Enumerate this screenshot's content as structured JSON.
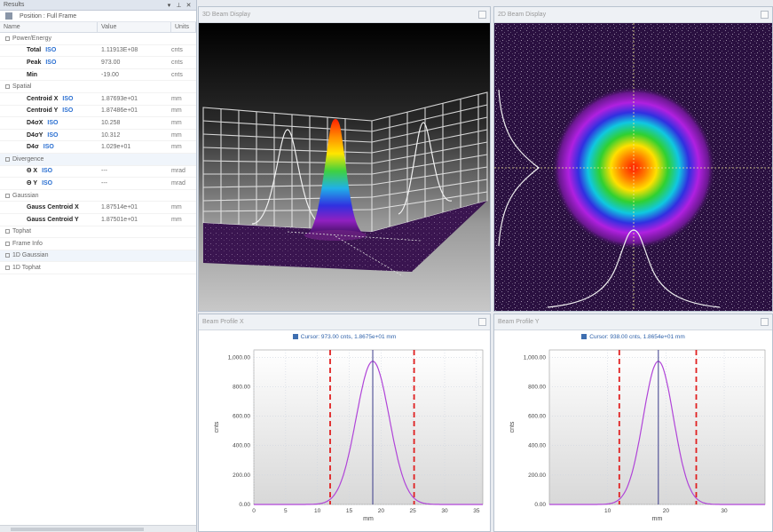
{
  "results": {
    "title": "Results",
    "toolbar_label": "Position : Full Frame",
    "columns": [
      "Name",
      "Value",
      "Units"
    ],
    "rows": [
      {
        "type": "group",
        "name": "Power/Energy"
      },
      {
        "type": "item",
        "name": "Total",
        "iso": "ISO",
        "value": "1.11913E+08",
        "units": "cnts"
      },
      {
        "type": "item",
        "name": "Peak",
        "iso": "ISO",
        "value": "973.00",
        "units": "cnts"
      },
      {
        "type": "item",
        "name": "Min",
        "iso": "",
        "value": "-19.00",
        "units": "cnts"
      },
      {
        "type": "group",
        "name": "Spatial"
      },
      {
        "type": "item",
        "name": "Centroid X",
        "iso": "ISO",
        "value": "1.87693e+01",
        "units": "mm"
      },
      {
        "type": "item",
        "name": "Centroid Y",
        "iso": "ISO",
        "value": "1.87486e+01",
        "units": "mm"
      },
      {
        "type": "item",
        "name": "D4σX",
        "iso": "ISO",
        "value": "10.258",
        "units": "mm"
      },
      {
        "type": "item",
        "name": "D4σY",
        "iso": "ISO",
        "value": "10.312",
        "units": "mm"
      },
      {
        "type": "item",
        "name": "D4σ",
        "iso": "ISO",
        "value": "1.029e+01",
        "units": "mm"
      },
      {
        "type": "group",
        "name": "Divergence",
        "band": true
      },
      {
        "type": "item",
        "name": "Θ X",
        "iso": "ISO",
        "value": "---",
        "units": "mrad"
      },
      {
        "type": "item",
        "name": "Θ Y",
        "iso": "ISO",
        "value": "---",
        "units": "mrad"
      },
      {
        "type": "group",
        "name": "Gaussian"
      },
      {
        "type": "item",
        "name": "Gauss Centroid X",
        "iso": "",
        "value": "1.87514e+01",
        "units": "mm"
      },
      {
        "type": "item",
        "name": "Gauss Centroid Y",
        "iso": "",
        "value": "1.87501e+01",
        "units": "mm"
      },
      {
        "type": "group",
        "name": "Tophat"
      },
      {
        "type": "group",
        "name": "Frame Info"
      },
      {
        "type": "group",
        "name": "1D Gaussian",
        "band": true
      },
      {
        "type": "group",
        "name": "1D Tophat"
      }
    ]
  },
  "pane3d": {
    "title": "3D Beam Display"
  },
  "pane2d": {
    "title": "2D Beam Display"
  },
  "profile_x": {
    "title": "Beam Profile X",
    "cursor": "Cursor: 973.00 cnts, 1.8675e+01 mm"
  },
  "profile_y": {
    "title": "Beam Profile Y",
    "cursor": "Cursor: 938.00 cnts, 1.8654e+01 mm"
  },
  "colors": {
    "curve": "#b044d8",
    "cursor": "#3a3a8a",
    "limits": "#e02020"
  },
  "chart_data": [
    {
      "type": "line",
      "title": "Beam Profile X",
      "xlabel": "mm",
      "ylabel": "cnts",
      "xlim": [
        0,
        36
      ],
      "ylim": [
        0,
        1050
      ],
      "xticks": [
        0,
        5,
        10,
        15,
        20,
        25,
        30,
        35
      ],
      "yticks": [
        0,
        200,
        400,
        600,
        800,
        1000
      ],
      "ytick_labels": [
        "0.00",
        "200.00",
        "400.00",
        "600.00",
        "800.00",
        "1,000.00"
      ],
      "series": [
        {
          "type": "gaussian",
          "center": 18.7,
          "sigma": 2.6,
          "amplitude": 973
        }
      ],
      "cursor_x": 18.7,
      "limits": [
        12.0,
        25.2
      ]
    },
    {
      "type": "line",
      "title": "Beam Profile Y",
      "xlabel": "mm",
      "ylabel": "cnts",
      "xlim": [
        0,
        37
      ],
      "ylim": [
        0,
        1050
      ],
      "xticks": [
        10,
        20,
        30
      ],
      "yticks": [
        0,
        200,
        400,
        600,
        800,
        1000
      ],
      "ytick_labels": [
        "0.00",
        "200.00",
        "400.00",
        "600.00",
        "800.00",
        "1,000.00"
      ],
      "series": [
        {
          "type": "gaussian",
          "center": 18.7,
          "sigma": 2.6,
          "amplitude": 973
        }
      ],
      "cursor_x": 18.7,
      "limits": [
        12.0,
        25.2
      ]
    }
  ]
}
